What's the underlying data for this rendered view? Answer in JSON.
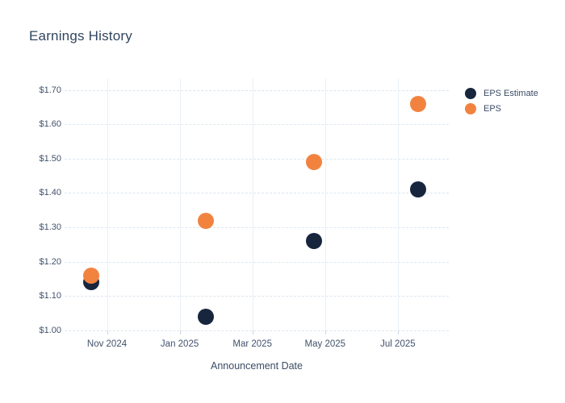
{
  "title": "Earnings History",
  "x_axis": {
    "title": "Announcement Date",
    "tick_labels": [
      "Nov 2024",
      "Jan 2025",
      "Mar 2025",
      "May 2025",
      "Jul 2025"
    ]
  },
  "y_axis": {
    "tick_labels": [
      "$1.70",
      "$1.60",
      "$1.50",
      "$1.40",
      "$1.30",
      "$1.20",
      "$1.10",
      "$1.00"
    ],
    "tick_values": [
      1.7,
      1.6,
      1.5,
      1.4,
      1.3,
      1.2,
      1.1,
      1.0
    ]
  },
  "legend": {
    "items": [
      {
        "label": "EPS Estimate",
        "color": "#17263d"
      },
      {
        "label": "EPS",
        "color": "#f2833f"
      }
    ]
  },
  "colors": {
    "eps_estimate": "#17263d",
    "eps": "#f2833f",
    "title_text": "#31455e",
    "tick_text": "#42526b",
    "grid": "#e6edf4"
  },
  "chart_data": {
    "type": "scatter",
    "title": "Earnings History",
    "xlabel": "Announcement Date",
    "ylabel": "",
    "ylim": [
      1.0,
      1.7
    ],
    "y_tick_step": 0.1,
    "grid": true,
    "legend_position": "right-top",
    "x_tick_labels": [
      "Nov 2024",
      "Jan 2025",
      "Mar 2025",
      "May 2025",
      "Jul 2025"
    ],
    "x_tick_month_offsets": [
      0,
      2,
      4,
      6,
      8
    ],
    "points_x_month_offsets": [
      -0.44,
      2.72,
      5.69,
      8.55
    ],
    "points_x_approx": [
      "late Oct 2024",
      "late Jan 2025",
      "late Apr 2025",
      "mid Jul 2025"
    ],
    "series": [
      {
        "name": "EPS Estimate",
        "color": "#17263d",
        "values": [
          1.14,
          1.04,
          1.26,
          1.41
        ]
      },
      {
        "name": "EPS",
        "color": "#f2833f",
        "values": [
          1.16,
          1.32,
          1.49,
          1.66
        ]
      }
    ]
  }
}
